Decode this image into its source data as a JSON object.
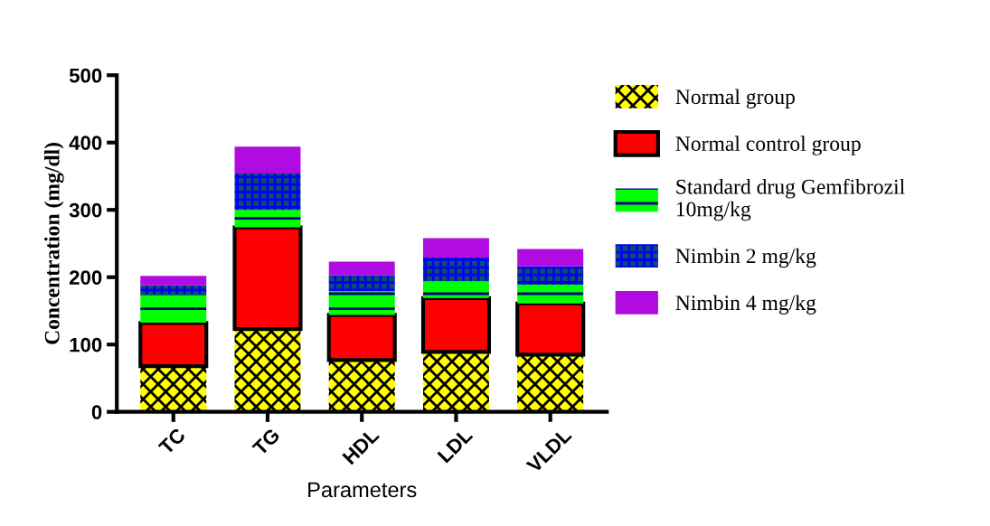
{
  "chart_data": {
    "type": "bar",
    "stacked": true,
    "xlabel": "Parameters",
    "ylabel": "Concentration (mg/dl)",
    "categories": [
      "TC",
      "TG",
      "HDL",
      "LDL",
      "VLDL"
    ],
    "series": [
      {
        "name": "Normal group",
        "color": "#ffff00",
        "values": [
          68,
          123,
          77,
          89,
          85
        ]
      },
      {
        "name": "Normal control group",
        "color": "#ff0000",
        "values": [
          64,
          151,
          67,
          80,
          76
        ]
      },
      {
        "name": "Standard drug Gemfibrozil\n10mg/kg",
        "color": "#00ff00",
        "values": [
          42,
          26,
          35,
          25,
          28
        ]
      },
      {
        "name": "Nimbin 2 mg/kg",
        "color": "#0d5060",
        "values": [
          14,
          54,
          24,
          35,
          27
        ]
      },
      {
        "name": "Nimbin 4 mg/kg",
        "color": "#b00be0",
        "values": [
          14,
          40,
          20,
          29,
          26
        ]
      }
    ],
    "ylim": [
      0,
      500
    ],
    "yticks": [
      0,
      100,
      200,
      300,
      400,
      500
    ],
    "grid": false,
    "legend": "right"
  }
}
